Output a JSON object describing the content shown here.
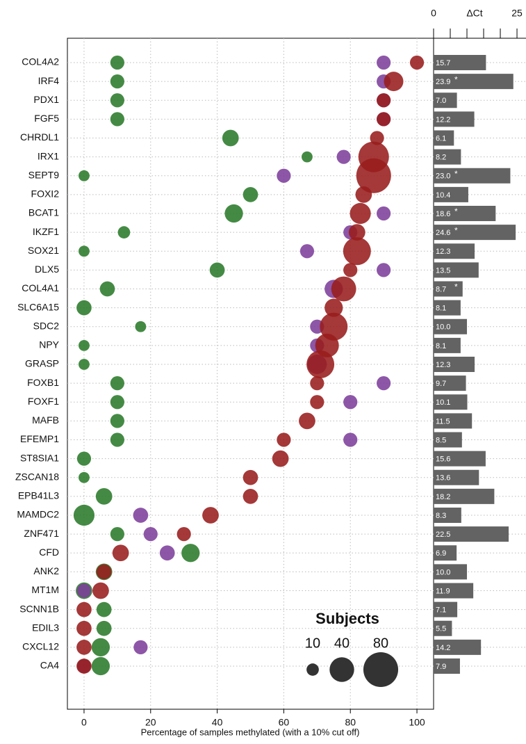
{
  "chart_data": [
    {
      "type": "bubble",
      "xlabel": "Percentage of samples methylated (with a 10% cut off)",
      "xlim": [
        -5,
        105
      ],
      "xticks": [
        0,
        20,
        40,
        60,
        80,
        100
      ],
      "grid": true,
      "categories": [
        "COL4A2",
        "IRF4",
        "PDX1",
        "FGF5",
        "CHRDL1",
        "IRX1",
        "SEPT9",
        "FOXI2",
        "BCAT1",
        "IKZF1",
        "SOX21",
        "DLX5",
        "COL4A1",
        "SLC6A15",
        "SDC2",
        "NPY",
        "GRASP",
        "FOXB1",
        "FOXF1",
        "MAFB",
        "EFEMP1",
        "ST8SIA1",
        "ZSCAN18",
        "EPB41L3",
        "MAMDC2",
        "ZNF471",
        "CFD",
        "ANK2",
        "MT1M",
        "SCNN1B",
        "EDIL3",
        "CXCL12",
        "CA4"
      ],
      "series": [
        {
          "color": "#2a7a2a",
          "values": [
            10,
            10,
            10,
            10,
            44,
            67,
            0,
            50,
            45,
            12,
            0,
            40,
            7,
            0,
            17,
            0,
            0,
            10,
            10,
            10,
            10,
            0,
            0,
            6,
            0,
            10,
            32,
            6,
            0,
            6,
            6,
            5,
            5
          ],
          "sizes": [
            13,
            13,
            13,
            13,
            18,
            8,
            8,
            15,
            22,
            10,
            8,
            15,
            15,
            15,
            8,
            8,
            8,
            13,
            13,
            13,
            13,
            13,
            8,
            18,
            29,
            13,
            22,
            18,
            18,
            15,
            15,
            22,
            22
          ]
        },
        {
          "color": "#7d3f9b",
          "values": [
            90,
            90,
            90,
            90,
            null,
            78,
            60,
            null,
            90,
            80,
            67,
            90,
            75,
            null,
            70,
            70,
            70,
            90,
            80,
            null,
            80,
            null,
            null,
            null,
            17,
            20,
            25,
            null,
            0,
            null,
            null,
            17,
            0
          ],
          "sizes": [
            13,
            13,
            13,
            13,
            null,
            13,
            13,
            null,
            13,
            13,
            13,
            13,
            22,
            null,
            13,
            13,
            25,
            13,
            13,
            null,
            13,
            null,
            null,
            null,
            15,
            13,
            15,
            null,
            13,
            null,
            null,
            13,
            13
          ]
        },
        {
          "color": "#981c1c",
          "values": [
            100,
            93,
            90,
            90,
            88,
            87,
            87,
            84,
            83,
            82,
            82,
            80,
            78,
            75,
            75,
            73,
            71,
            70,
            70,
            67,
            60,
            59,
            50,
            50,
            38,
            30,
            11,
            6,
            5,
            0,
            0,
            0,
            0
          ],
          "sizes": [
            13,
            25,
            13,
            13,
            13,
            62,
            80,
            18,
            29,
            18,
            51,
            13,
            41,
            22,
            51,
            37,
            51,
            13,
            13,
            18,
            13,
            18,
            15,
            15,
            18,
            13,
            18,
            15,
            18,
            15,
            15,
            15,
            15
          ]
        }
      ],
      "size_legend": {
        "title": "Subjects",
        "values": [
          10,
          40,
          80
        ]
      }
    },
    {
      "type": "hbar",
      "xlabel": "ΔCt",
      "xlim": [
        0,
        27.7
      ],
      "xticks": [
        0,
        25
      ],
      "xminor": [
        5,
        10,
        15,
        20
      ],
      "color": "#636363",
      "values": [
        15.7,
        23.9,
        7.0,
        12.2,
        6.1,
        8.2,
        23.0,
        10.4,
        18.6,
        24.6,
        12.3,
        13.5,
        8.7,
        8.1,
        10.0,
        8.1,
        12.3,
        9.7,
        10.1,
        11.5,
        8.5,
        15.6,
        13.6,
        18.2,
        8.3,
        22.5,
        6.9,
        10.0,
        11.9,
        7.1,
        5.5,
        14.2,
        7.9
      ],
      "value_labels": [
        "15.7",
        "23.9",
        "7.0",
        "12.2",
        "6.1",
        "8.2",
        "23.0",
        "10.4",
        "18.6",
        "24.6",
        "12.3",
        "13.5",
        "8.7",
        "8.1",
        "10.0",
        "8.1",
        "12.3",
        "9.7",
        "10.1",
        "11.5",
        "8.5",
        "15.6",
        "13.6",
        "18.2",
        "8.3",
        "22.5",
        "6.9",
        "10.0",
        "11.9",
        "7.1",
        "5.5",
        "14.2",
        "7.9"
      ],
      "star_label": "*",
      "starred": [
        false,
        true,
        false,
        false,
        false,
        false,
        true,
        false,
        true,
        true,
        false,
        false,
        true,
        false,
        false,
        false,
        false,
        false,
        false,
        false,
        false,
        false,
        false,
        false,
        false,
        false,
        false,
        false,
        false,
        false,
        false,
        false,
        false
      ]
    }
  ]
}
